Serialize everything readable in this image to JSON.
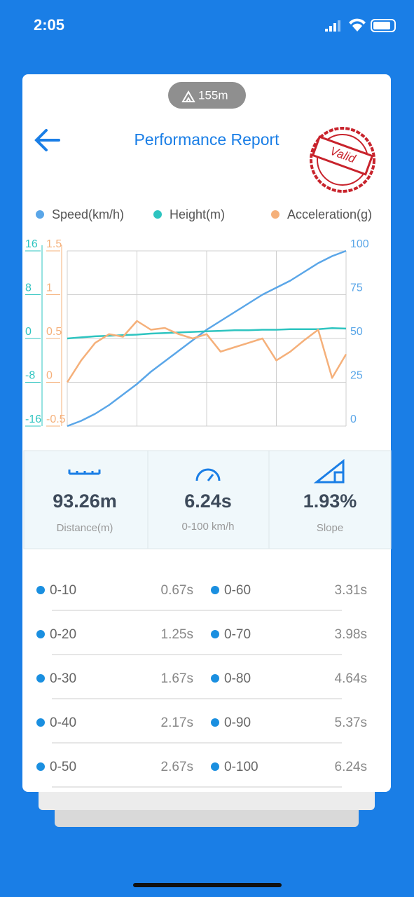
{
  "status_bar": {
    "time": "2:05"
  },
  "header": {
    "altitude": "155m",
    "title": "Performance Report",
    "stamp": "Valid"
  },
  "chart": {
    "type": "line",
    "grid": true,
    "categories": [
      null,
      null,
      null,
      null,
      null,
      null,
      null,
      null,
      null,
      null,
      null,
      null,
      null,
      null,
      null,
      null,
      null,
      null,
      null,
      null,
      null
    ],
    "ylim": [
      -16,
      16
    ],
    "yticks": [
      16,
      8,
      0,
      -8,
      -16
    ],
    "y2lim": [
      -0.5,
      1.5
    ],
    "y2ticks": [
      1.5,
      1,
      0.5,
      0,
      -0.5
    ],
    "y3lim": [
      0,
      100
    ],
    "y3ticks": [
      100,
      75,
      50,
      25,
      0
    ],
    "series": [
      {
        "name": "Speed(km/h)",
        "color": "#5aa6e8",
        "axis": "y3",
        "values": [
          0,
          3,
          7,
          12,
          18,
          24,
          31,
          37,
          43,
          49,
          55,
          60,
          65,
          70,
          75,
          79,
          83,
          88,
          93,
          97,
          100
        ]
      },
      {
        "name": "Height(m)",
        "color": "#2ec4c0",
        "axis": "y",
        "values": [
          0,
          0.2,
          0.4,
          0.5,
          0.6,
          0.7,
          0.9,
          1,
          1.1,
          1.2,
          1.3,
          1.4,
          1.5,
          1.5,
          1.6,
          1.6,
          1.7,
          1.7,
          1.7,
          1.9,
          1.8
        ]
      },
      {
        "name": "Acceleration(g)",
        "color": "#f5b07a",
        "axis": "y2",
        "values": [
          0,
          0.25,
          0.45,
          0.55,
          0.52,
          0.7,
          0.6,
          0.62,
          0.55,
          0.5,
          0.55,
          0.35,
          0.4,
          0.45,
          0.5,
          0.25,
          0.35,
          0.48,
          0.6,
          0.05,
          0.32
        ]
      }
    ]
  },
  "stats": [
    {
      "value": "93.26m",
      "label": "Distance(m)"
    },
    {
      "value": "6.24s",
      "label": "0-100 km/h"
    },
    {
      "value": "1.93%",
      "label": "Slope"
    }
  ],
  "splits": [
    {
      "range": "0-10",
      "time": "0.67s"
    },
    {
      "range": "0-20",
      "time": "1.25s"
    },
    {
      "range": "0-30",
      "time": "1.67s"
    },
    {
      "range": "0-40",
      "time": "2.17s"
    },
    {
      "range": "0-50",
      "time": "2.67s"
    },
    {
      "range": "0-60",
      "time": "3.31s"
    },
    {
      "range": "0-70",
      "time": "3.98s"
    },
    {
      "range": "0-80",
      "time": "4.64s"
    },
    {
      "range": "0-90",
      "time": "5.37s"
    },
    {
      "range": "0-100",
      "time": "6.24s"
    }
  ]
}
